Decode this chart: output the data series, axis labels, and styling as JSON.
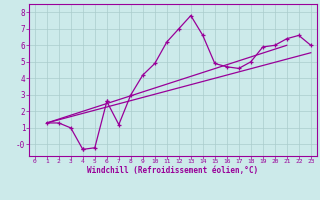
{
  "xlabel": "Windchill (Refroidissement éolien,°C)",
  "bg_color": "#cceaea",
  "grid_color": "#aacccc",
  "line_color": "#990099",
  "xlim": [
    -0.5,
    23.5
  ],
  "ylim": [
    -0.7,
    8.5
  ],
  "xticks": [
    0,
    1,
    2,
    3,
    4,
    5,
    6,
    7,
    8,
    9,
    10,
    11,
    12,
    13,
    14,
    15,
    16,
    17,
    18,
    19,
    20,
    21,
    22,
    23
  ],
  "yticks": [
    0,
    1,
    2,
    3,
    4,
    5,
    6,
    7,
    8
  ],
  "ytick_labels": [
    "-0",
    "1",
    "2",
    "3",
    "4",
    "5",
    "6",
    "7",
    "8"
  ],
  "line1_x": [
    1,
    2,
    3,
    4,
    4,
    5,
    6,
    6,
    7,
    8,
    9,
    10,
    11,
    12,
    13,
    14,
    15,
    16,
    17,
    18,
    19,
    20,
    21,
    22,
    23
  ],
  "line1_y": [
    1.3,
    1.3,
    1.0,
    -0.3,
    -0.3,
    -0.2,
    2.6,
    2.6,
    1.2,
    3.0,
    4.2,
    4.9,
    6.2,
    7.0,
    7.8,
    6.6,
    4.9,
    4.7,
    4.6,
    5.0,
    5.9,
    6.0,
    6.4,
    6.6,
    6.0
  ],
  "line2_x": [
    1,
    23
  ],
  "line2_y": [
    1.3,
    5.55
  ],
  "line3_x": [
    1,
    21
  ],
  "line3_y": [
    1.3,
    6.0
  ]
}
